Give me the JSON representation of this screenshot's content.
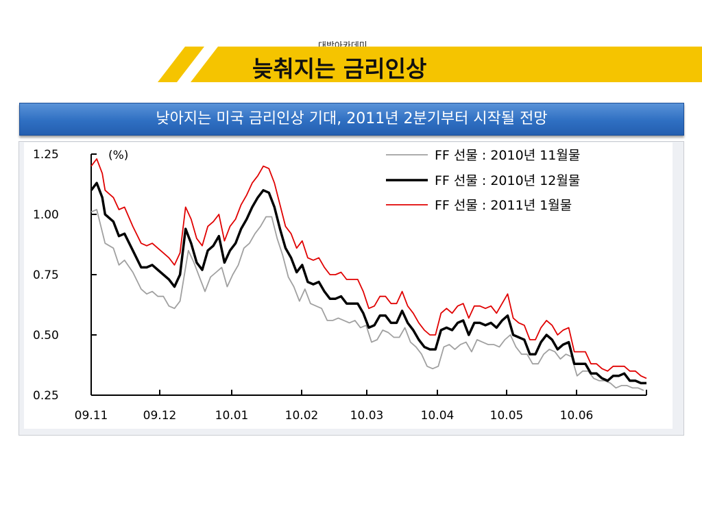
{
  "header": {
    "academy": "대박아카데미",
    "title": "늦춰지는 금리인상",
    "banner_color": "#f5c400"
  },
  "subtitle": "낮아지는 미국 금리인상 기대, 2011년 2분기부터 시작될 전망",
  "chart_data": {
    "type": "line",
    "ylabel": "(%)",
    "ylim": [
      0.25,
      1.25
    ],
    "yticks": [
      "1.25",
      "1.00",
      "0.75",
      "0.50",
      "0.25"
    ],
    "xticks": [
      "09.11",
      "09.12",
      "10.01",
      "10.02",
      "10.03",
      "10.04",
      "10.05",
      "10.06"
    ],
    "legend_position": "top-right",
    "series": [
      {
        "name": "FF 선물 : 2010년 11월물",
        "color": "#a0a0a0",
        "points": [
          [
            0,
            1.01
          ],
          [
            2,
            1.02
          ],
          [
            5,
            0.88
          ],
          [
            8,
            0.86
          ],
          [
            10,
            0.79
          ],
          [
            12,
            0.81
          ],
          [
            15,
            0.76
          ],
          [
            18,
            0.69
          ],
          [
            20,
            0.67
          ],
          [
            22,
            0.68
          ],
          [
            24,
            0.66
          ],
          [
            26,
            0.66
          ],
          [
            28,
            0.62
          ],
          [
            30,
            0.61
          ],
          [
            32,
            0.64
          ],
          [
            35,
            0.85
          ],
          [
            37,
            0.8
          ],
          [
            39,
            0.74
          ],
          [
            41,
            0.68
          ],
          [
            43,
            0.74
          ],
          [
            45,
            0.76
          ],
          [
            47,
            0.78
          ],
          [
            49,
            0.7
          ],
          [
            51,
            0.75
          ],
          [
            53,
            0.79
          ],
          [
            55,
            0.86
          ],
          [
            57,
            0.88
          ],
          [
            59,
            0.92
          ],
          [
            61,
            0.95
          ],
          [
            63,
            0.99
          ],
          [
            65,
            0.99
          ],
          [
            67,
            0.9
          ],
          [
            69,
            0.83
          ],
          [
            71,
            0.74
          ],
          [
            73,
            0.7
          ],
          [
            75,
            0.64
          ],
          [
            77,
            0.69
          ],
          [
            79,
            0.63
          ],
          [
            81,
            0.62
          ],
          [
            83,
            0.61
          ],
          [
            85,
            0.56
          ],
          [
            87,
            0.56
          ],
          [
            89,
            0.57
          ],
          [
            91,
            0.56
          ],
          [
            93,
            0.55
          ],
          [
            95,
            0.56
          ],
          [
            97,
            0.53
          ],
          [
            99,
            0.54
          ],
          [
            101,
            0.47
          ],
          [
            103,
            0.48
          ],
          [
            105,
            0.52
          ],
          [
            107,
            0.51
          ],
          [
            109,
            0.49
          ],
          [
            111,
            0.49
          ],
          [
            113,
            0.53
          ],
          [
            115,
            0.47
          ],
          [
            117,
            0.45
          ],
          [
            119,
            0.42
          ],
          [
            121,
            0.37
          ],
          [
            123,
            0.36
          ],
          [
            125,
            0.37
          ],
          [
            127,
            0.45
          ],
          [
            129,
            0.46
          ],
          [
            131,
            0.44
          ],
          [
            133,
            0.46
          ],
          [
            135,
            0.47
          ],
          [
            137,
            0.43
          ],
          [
            139,
            0.48
          ],
          [
            141,
            0.47
          ],
          [
            143,
            0.46
          ],
          [
            145,
            0.46
          ],
          [
            147,
            0.45
          ],
          [
            149,
            0.48
          ],
          [
            151,
            0.5
          ],
          [
            153,
            0.45
          ],
          [
            155,
            0.42
          ],
          [
            157,
            0.42
          ],
          [
            159,
            0.38
          ],
          [
            161,
            0.38
          ],
          [
            163,
            0.42
          ],
          [
            165,
            0.44
          ],
          [
            167,
            0.43
          ],
          [
            169,
            0.4
          ],
          [
            171,
            0.42
          ],
          [
            173,
            0.41
          ],
          [
            175,
            0.33
          ],
          [
            177,
            0.35
          ],
          [
            179,
            0.35
          ],
          [
            181,
            0.32
          ],
          [
            183,
            0.31
          ],
          [
            185,
            0.31
          ],
          [
            187,
            0.3
          ],
          [
            189,
            0.28
          ],
          [
            191,
            0.29
          ],
          [
            193,
            0.29
          ],
          [
            195,
            0.28
          ],
          [
            197,
            0.28
          ],
          [
            199,
            0.27
          ]
        ]
      },
      {
        "name": "FF 선물 : 2010년 12월물",
        "color": "#000000",
        "points": [
          [
            0,
            1.1
          ],
          [
            2,
            1.13
          ],
          [
            4,
            1.07
          ],
          [
            5,
            1.0
          ],
          [
            8,
            0.97
          ],
          [
            10,
            0.91
          ],
          [
            12,
            0.92
          ],
          [
            15,
            0.85
          ],
          [
            18,
            0.78
          ],
          [
            20,
            0.78
          ],
          [
            22,
            0.79
          ],
          [
            24,
            0.77
          ],
          [
            26,
            0.75
          ],
          [
            28,
            0.73
          ],
          [
            30,
            0.7
          ],
          [
            32,
            0.75
          ],
          [
            34,
            0.94
          ],
          [
            36,
            0.88
          ],
          [
            38,
            0.8
          ],
          [
            40,
            0.77
          ],
          [
            42,
            0.85
          ],
          [
            44,
            0.87
          ],
          [
            46,
            0.91
          ],
          [
            48,
            0.8
          ],
          [
            50,
            0.85
          ],
          [
            52,
            0.88
          ],
          [
            54,
            0.94
          ],
          [
            56,
            0.98
          ],
          [
            58,
            1.03
          ],
          [
            60,
            1.07
          ],
          [
            62,
            1.1
          ],
          [
            64,
            1.09
          ],
          [
            66,
            1.03
          ],
          [
            68,
            0.94
          ],
          [
            70,
            0.86
          ],
          [
            72,
            0.82
          ],
          [
            74,
            0.76
          ],
          [
            76,
            0.79
          ],
          [
            78,
            0.72
          ],
          [
            80,
            0.71
          ],
          [
            82,
            0.72
          ],
          [
            84,
            0.68
          ],
          [
            86,
            0.65
          ],
          [
            88,
            0.65
          ],
          [
            90,
            0.66
          ],
          [
            92,
            0.63
          ],
          [
            94,
            0.63
          ],
          [
            96,
            0.63
          ],
          [
            98,
            0.59
          ],
          [
            100,
            0.53
          ],
          [
            102,
            0.54
          ],
          [
            104,
            0.58
          ],
          [
            106,
            0.58
          ],
          [
            108,
            0.55
          ],
          [
            110,
            0.55
          ],
          [
            112,
            0.6
          ],
          [
            114,
            0.55
          ],
          [
            116,
            0.52
          ],
          [
            118,
            0.48
          ],
          [
            120,
            0.45
          ],
          [
            122,
            0.44
          ],
          [
            124,
            0.44
          ],
          [
            126,
            0.52
          ],
          [
            128,
            0.53
          ],
          [
            130,
            0.52
          ],
          [
            132,
            0.55
          ],
          [
            134,
            0.56
          ],
          [
            136,
            0.5
          ],
          [
            138,
            0.55
          ],
          [
            140,
            0.55
          ],
          [
            142,
            0.54
          ],
          [
            144,
            0.55
          ],
          [
            146,
            0.53
          ],
          [
            148,
            0.56
          ],
          [
            150,
            0.58
          ],
          [
            152,
            0.5
          ],
          [
            154,
            0.49
          ],
          [
            156,
            0.48
          ],
          [
            158,
            0.42
          ],
          [
            160,
            0.42
          ],
          [
            162,
            0.47
          ],
          [
            164,
            0.5
          ],
          [
            166,
            0.48
          ],
          [
            168,
            0.44
          ],
          [
            170,
            0.46
          ],
          [
            172,
            0.47
          ],
          [
            174,
            0.38
          ],
          [
            176,
            0.38
          ],
          [
            178,
            0.38
          ],
          [
            180,
            0.34
          ],
          [
            182,
            0.34
          ],
          [
            184,
            0.32
          ],
          [
            186,
            0.31
          ],
          [
            188,
            0.33
          ],
          [
            190,
            0.33
          ],
          [
            192,
            0.34
          ],
          [
            194,
            0.31
          ],
          [
            196,
            0.31
          ],
          [
            198,
            0.3
          ],
          [
            200,
            0.3
          ]
        ]
      },
      {
        "name": "FF 선물 : 2011년 1월물",
        "color": "#e00000",
        "points": [
          [
            0,
            1.2
          ],
          [
            2,
            1.23
          ],
          [
            4,
            1.17
          ],
          [
            5,
            1.1
          ],
          [
            8,
            1.07
          ],
          [
            10,
            1.02
          ],
          [
            12,
            1.03
          ],
          [
            15,
            0.95
          ],
          [
            18,
            0.88
          ],
          [
            20,
            0.87
          ],
          [
            22,
            0.88
          ],
          [
            24,
            0.86
          ],
          [
            26,
            0.84
          ],
          [
            28,
            0.82
          ],
          [
            30,
            0.79
          ],
          [
            32,
            0.84
          ],
          [
            34,
            1.03
          ],
          [
            36,
            0.98
          ],
          [
            38,
            0.9
          ],
          [
            40,
            0.87
          ],
          [
            42,
            0.95
          ],
          [
            44,
            0.97
          ],
          [
            46,
            1.0
          ],
          [
            48,
            0.89
          ],
          [
            50,
            0.95
          ],
          [
            52,
            0.98
          ],
          [
            54,
            1.04
          ],
          [
            56,
            1.08
          ],
          [
            58,
            1.13
          ],
          [
            60,
            1.16
          ],
          [
            62,
            1.2
          ],
          [
            64,
            1.19
          ],
          [
            66,
            1.13
          ],
          [
            68,
            1.04
          ],
          [
            70,
            0.95
          ],
          [
            72,
            0.92
          ],
          [
            74,
            0.86
          ],
          [
            76,
            0.89
          ],
          [
            78,
            0.82
          ],
          [
            80,
            0.81
          ],
          [
            82,
            0.82
          ],
          [
            84,
            0.78
          ],
          [
            86,
            0.75
          ],
          [
            88,
            0.75
          ],
          [
            90,
            0.76
          ],
          [
            92,
            0.73
          ],
          [
            94,
            0.73
          ],
          [
            96,
            0.73
          ],
          [
            98,
            0.68
          ],
          [
            100,
            0.61
          ],
          [
            102,
            0.62
          ],
          [
            104,
            0.66
          ],
          [
            106,
            0.66
          ],
          [
            108,
            0.63
          ],
          [
            110,
            0.63
          ],
          [
            112,
            0.68
          ],
          [
            114,
            0.62
          ],
          [
            116,
            0.59
          ],
          [
            118,
            0.55
          ],
          [
            120,
            0.52
          ],
          [
            122,
            0.5
          ],
          [
            124,
            0.5
          ],
          [
            126,
            0.59
          ],
          [
            128,
            0.61
          ],
          [
            130,
            0.59
          ],
          [
            132,
            0.62
          ],
          [
            134,
            0.63
          ],
          [
            136,
            0.57
          ],
          [
            138,
            0.62
          ],
          [
            140,
            0.62
          ],
          [
            142,
            0.61
          ],
          [
            144,
            0.62
          ],
          [
            146,
            0.59
          ],
          [
            148,
            0.63
          ],
          [
            150,
            0.67
          ],
          [
            152,
            0.57
          ],
          [
            154,
            0.55
          ],
          [
            156,
            0.54
          ],
          [
            158,
            0.48
          ],
          [
            160,
            0.48
          ],
          [
            162,
            0.53
          ],
          [
            164,
            0.56
          ],
          [
            166,
            0.54
          ],
          [
            168,
            0.5
          ],
          [
            170,
            0.52
          ],
          [
            172,
            0.53
          ],
          [
            174,
            0.43
          ],
          [
            176,
            0.43
          ],
          [
            178,
            0.43
          ],
          [
            180,
            0.38
          ],
          [
            182,
            0.38
          ],
          [
            184,
            0.36
          ],
          [
            186,
            0.35
          ],
          [
            188,
            0.37
          ],
          [
            190,
            0.37
          ],
          [
            192,
            0.37
          ],
          [
            194,
            0.35
          ],
          [
            196,
            0.35
          ],
          [
            198,
            0.33
          ],
          [
            200,
            0.32
          ]
        ]
      }
    ]
  }
}
